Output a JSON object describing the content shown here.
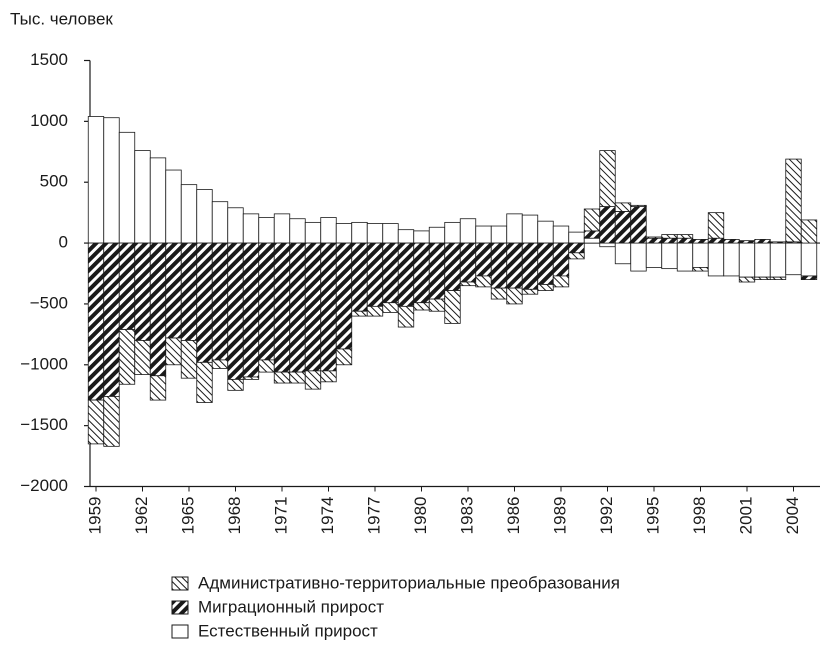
{
  "chart_data": {
    "type": "bar",
    "stacked": true,
    "y_label": "Тыс. человек",
    "categories": [
      "1959",
      null,
      null,
      "1962",
      null,
      null,
      "1965",
      null,
      null,
      "1968",
      null,
      null,
      "1971",
      null,
      null,
      "1974",
      null,
      null,
      "1977",
      null,
      null,
      "1980",
      null,
      null,
      "1983",
      null,
      null,
      "1986",
      null,
      null,
      "1989",
      null,
      null,
      "1992",
      null,
      null,
      "1995",
      null,
      null,
      "1998",
      null,
      null,
      "2001",
      null,
      null,
      "2004",
      null
    ],
    "series": [
      {
        "name": "Естественный прирост",
        "color": "#ffffff",
        "pattern": "none",
        "values": [
          1040,
          1030,
          910,
          760,
          700,
          600,
          480,
          440,
          340,
          290,
          240,
          210,
          240,
          200,
          170,
          210,
          160,
          170,
          160,
          160,
          110,
          100,
          130,
          170,
          200,
          140,
          140,
          240,
          230,
          180,
          140,
          90,
          40,
          -30,
          -170,
          -230,
          -200,
          -210,
          -230,
          -200,
          -270,
          -270,
          -280,
          -280,
          -280,
          -260,
          -270
        ]
      },
      {
        "name": "Миграционный прирост",
        "color": "#1a1a1a",
        "pattern": "dense",
        "values": [
          -1290,
          -1260,
          -710,
          -800,
          -1090,
          -780,
          -800,
          -980,
          -960,
          -1120,
          -1100,
          -960,
          -1060,
          -1060,
          -1050,
          -1050,
          -870,
          -560,
          -520,
          -490,
          -520,
          -490,
          -460,
          -390,
          -320,
          -270,
          -370,
          -370,
          -380,
          -340,
          -270,
          -80,
          60,
          300,
          260,
          300,
          40,
          40,
          40,
          30,
          40,
          30,
          20,
          30,
          10,
          10,
          -30
        ]
      },
      {
        "name": "Административно-территориальные преобразования",
        "color": "#1a1a1a",
        "pattern": "light",
        "values": [
          -360,
          -410,
          -450,
          -280,
          -200,
          -220,
          -310,
          -330,
          -70,
          -90,
          -20,
          -100,
          -90,
          -90,
          -150,
          -90,
          -130,
          -40,
          -80,
          -80,
          -170,
          -60,
          -100,
          -270,
          -30,
          -90,
          -90,
          -130,
          -40,
          -50,
          -90,
          -50,
          180,
          460,
          70,
          10,
          10,
          30,
          30,
          -30,
          210,
          0,
          -40,
          -20,
          -20,
          680,
          190
        ]
      }
    ],
    "ylim": [
      -2000,
      1500
    ],
    "yticks": [
      {
        "value": -2000,
        "label": "−2000"
      },
      {
        "value": -1500,
        "label": "−1500"
      },
      {
        "value": -1000,
        "label": "−1000"
      },
      {
        "value": -500,
        "label": "−500"
      },
      0,
      500,
      1000,
      1500
    ]
  }
}
